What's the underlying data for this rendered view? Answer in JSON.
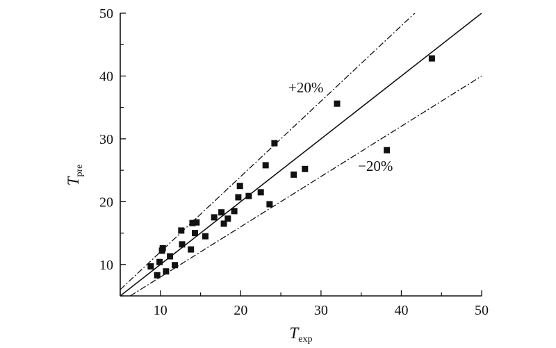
{
  "chart_data": {
    "type": "scatter",
    "xlabel": {
      "main": "T",
      "sub": "exp"
    },
    "ylabel": {
      "main": "T",
      "sub": "pre"
    },
    "xlim": [
      5,
      50
    ],
    "ylim": [
      5,
      50
    ],
    "xticks": [
      10,
      20,
      30,
      40,
      50
    ],
    "yticks": [
      10,
      20,
      30,
      40,
      50
    ],
    "grid": false,
    "lines": [
      {
        "label": "",
        "style": "solid",
        "slope": 1.0
      },
      {
        "label": "+20%",
        "style": "dash-dot",
        "slope": 1.2
      },
      {
        "label": "−20%",
        "style": "dash-dot",
        "slope": 0.8
      }
    ],
    "points": [
      [
        8.8,
        9.7
      ],
      [
        9.6,
        8.3
      ],
      [
        9.9,
        10.4
      ],
      [
        10.2,
        12.2
      ],
      [
        10.3,
        12.6
      ],
      [
        10.7,
        8.9
      ],
      [
        11.2,
        11.3
      ],
      [
        11.8,
        9.9
      ],
      [
        12.6,
        15.4
      ],
      [
        12.7,
        13.2
      ],
      [
        13.8,
        12.4
      ],
      [
        14.0,
        16.6
      ],
      [
        14.3,
        15.0
      ],
      [
        14.5,
        16.7
      ],
      [
        15.6,
        14.5
      ],
      [
        16.7,
        17.5
      ],
      [
        17.6,
        18.3
      ],
      [
        17.9,
        16.5
      ],
      [
        18.4,
        17.3
      ],
      [
        19.2,
        18.5
      ],
      [
        19.7,
        20.7
      ],
      [
        19.9,
        22.5
      ],
      [
        21.0,
        20.9
      ],
      [
        22.5,
        21.5
      ],
      [
        23.1,
        25.8
      ],
      [
        23.6,
        19.6
      ],
      [
        24.2,
        29.3
      ],
      [
        26.6,
        24.3
      ],
      [
        28.0,
        25.2
      ],
      [
        32.0,
        35.6
      ],
      [
        38.2,
        28.2
      ],
      [
        43.8,
        42.8
      ]
    ]
  }
}
